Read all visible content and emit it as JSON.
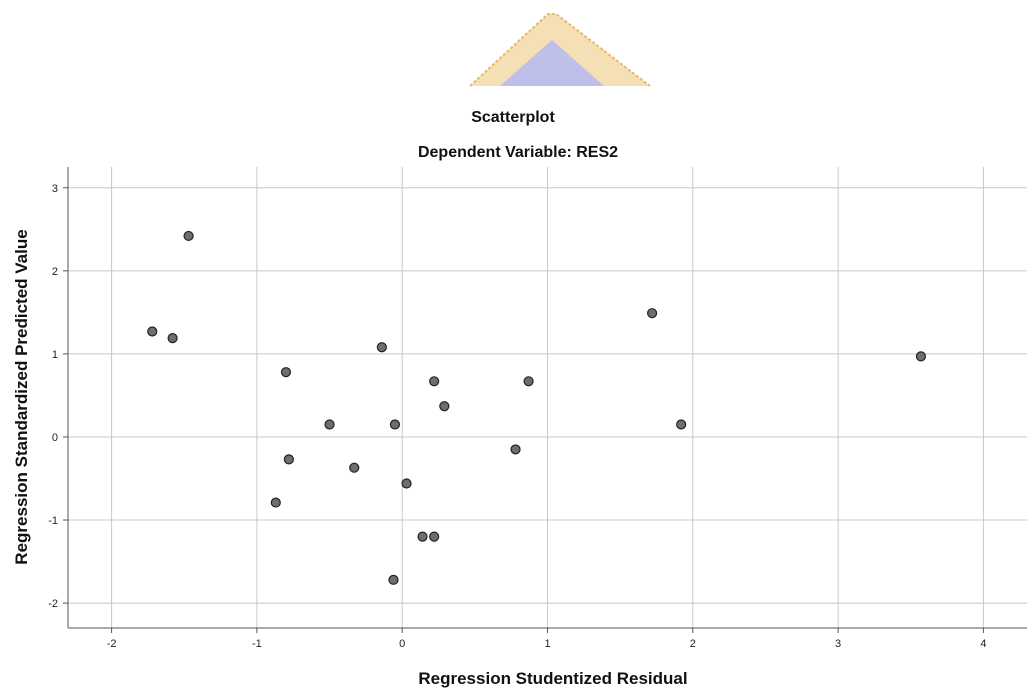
{
  "chart_data": {
    "type": "scatter",
    "title": "Scatterplot",
    "subtitle": "Dependent Variable: RES2",
    "xlabel": "Regression Studentized Residual",
    "ylabel": "Regression Standardized Predicted Value",
    "xlim": [
      -2.3,
      4.3
    ],
    "ylim": [
      -2.3,
      3.25
    ],
    "xticks": [
      -2,
      -1,
      0,
      1,
      2,
      3,
      4
    ],
    "yticks": [
      -2,
      -1,
      0,
      1,
      2,
      3
    ],
    "xtick_labels": [
      "-2",
      "-1",
      "0",
      "1",
      "2",
      "3",
      "4"
    ],
    "ytick_labels": [
      "-2",
      "-1",
      "0",
      "1",
      "2",
      "3"
    ],
    "grid": true,
    "points": [
      {
        "x": -1.47,
        "y": 2.42
      },
      {
        "x": -1.72,
        "y": 1.27
      },
      {
        "x": -1.58,
        "y": 1.19
      },
      {
        "x": -0.14,
        "y": 1.08
      },
      {
        "x": -0.8,
        "y": 0.78
      },
      {
        "x": 0.22,
        "y": 0.67
      },
      {
        "x": 0.87,
        "y": 0.67
      },
      {
        "x": 0.29,
        "y": 0.37
      },
      {
        "x": -0.5,
        "y": 0.15
      },
      {
        "x": -0.05,
        "y": 0.15
      },
      {
        "x": 1.72,
        "y": 1.49
      },
      {
        "x": 1.92,
        "y": 0.15
      },
      {
        "x": 3.57,
        "y": 0.97
      },
      {
        "x": 0.78,
        "y": -0.15
      },
      {
        "x": -0.78,
        "y": -0.27
      },
      {
        "x": -0.33,
        "y": -0.37
      },
      {
        "x": 0.03,
        "y": -0.56
      },
      {
        "x": -0.87,
        "y": -0.79
      },
      {
        "x": 0.14,
        "y": -1.2
      },
      {
        "x": 0.22,
        "y": -1.2
      },
      {
        "x": -0.06,
        "y": -1.72
      }
    ],
    "marker_fill": "#6e6e6e",
    "marker_stroke": "#222222",
    "grid_color": "#c8c8c8"
  },
  "watermark": {
    "colors": [
      "#e8b86a",
      "#9aa0e0"
    ]
  }
}
